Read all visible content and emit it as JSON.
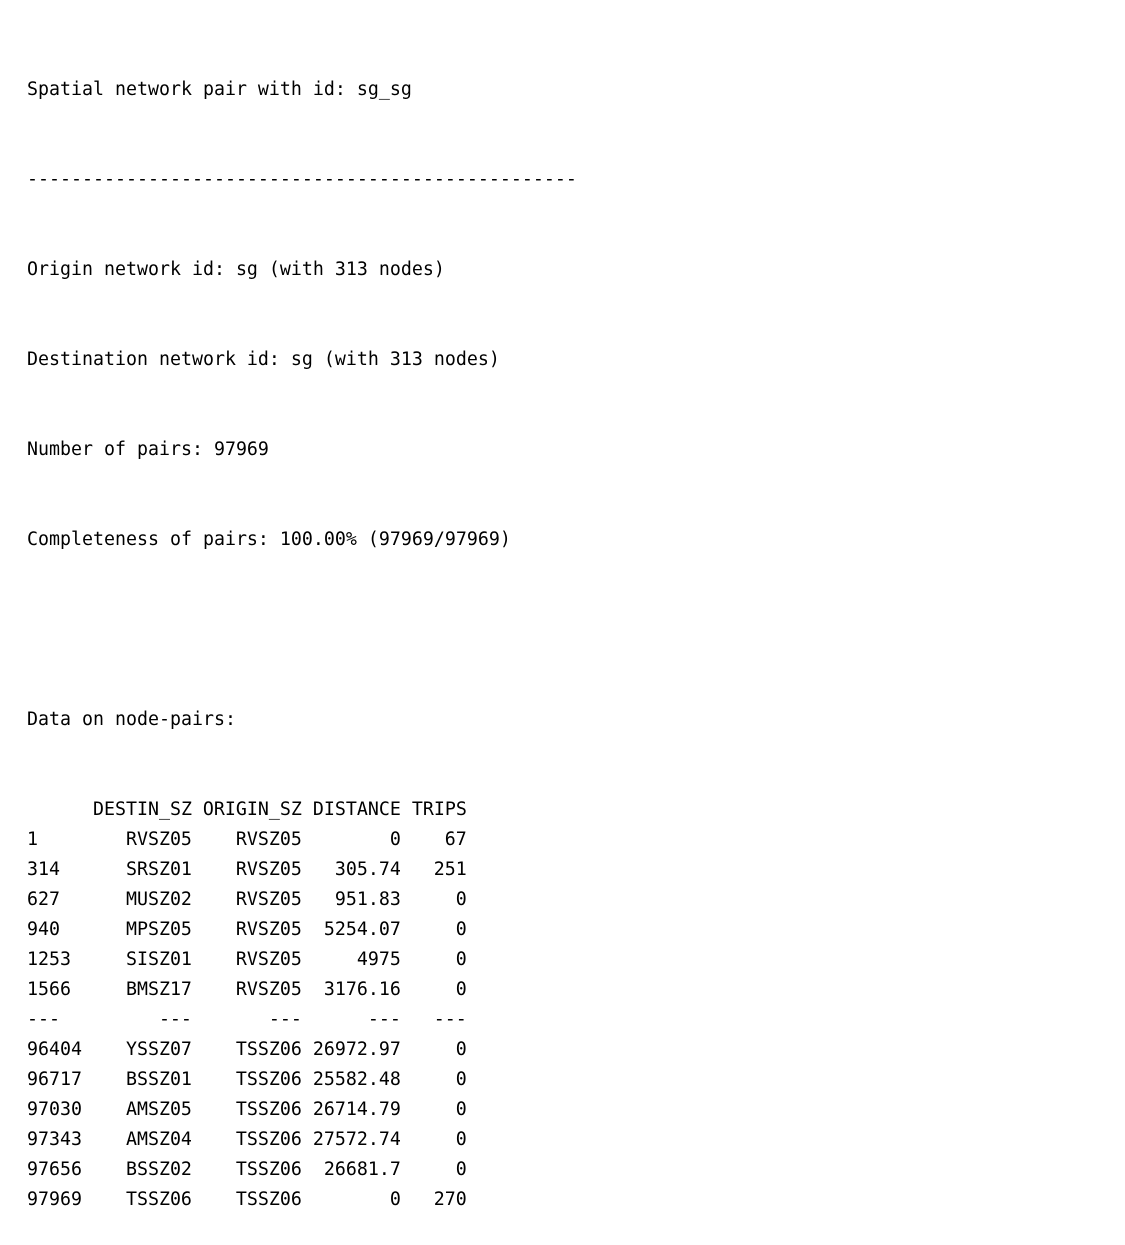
{
  "summary": {
    "title": "Spatial network pair with id: sg_sg",
    "separator": "--------------------------------------------------",
    "origin": "Origin network id: sg (with 313 nodes)",
    "destination": "Destination network id: sg (with 313 nodes)",
    "pairs": "Number of pairs: 97969",
    "completeness": "Completeness of pairs: 100.00% (97969/97969)"
  },
  "table": {
    "caption": "Data on node-pairs:",
    "columns": [
      "",
      "DESTIN_SZ",
      "ORIGIN_SZ",
      "DISTANCE",
      "TRIPS"
    ],
    "rows": [
      [
        "1",
        "RVSZ05",
        "RVSZ05",
        "0",
        "67"
      ],
      [
        "314",
        "SRSZ01",
        "RVSZ05",
        "305.74",
        "251"
      ],
      [
        "627",
        "MUSZ02",
        "RVSZ05",
        "951.83",
        "0"
      ],
      [
        "940",
        "MPSZ05",
        "RVSZ05",
        "5254.07",
        "0"
      ],
      [
        "1253",
        "SISZ01",
        "RVSZ05",
        "4975",
        "0"
      ],
      [
        "1566",
        "BMSZ17",
        "RVSZ05",
        "3176.16",
        "0"
      ],
      [
        "---",
        "---",
        "---",
        "---",
        "---"
      ],
      [
        "96404",
        "YSSZ07",
        "TSSZ06",
        "26972.97",
        "0"
      ],
      [
        "96717",
        "BSSZ01",
        "TSSZ06",
        "25582.48",
        "0"
      ],
      [
        "97030",
        "AMSZ05",
        "TSSZ06",
        "26714.79",
        "0"
      ],
      [
        "97343",
        "AMSZ04",
        "TSSZ06",
        "27572.74",
        "0"
      ],
      [
        "97656",
        "BSSZ02",
        "TSSZ06",
        "26681.7",
        "0"
      ],
      [
        "97969",
        "TSSZ06",
        "TSSZ06",
        "0",
        "270"
      ]
    ]
  }
}
